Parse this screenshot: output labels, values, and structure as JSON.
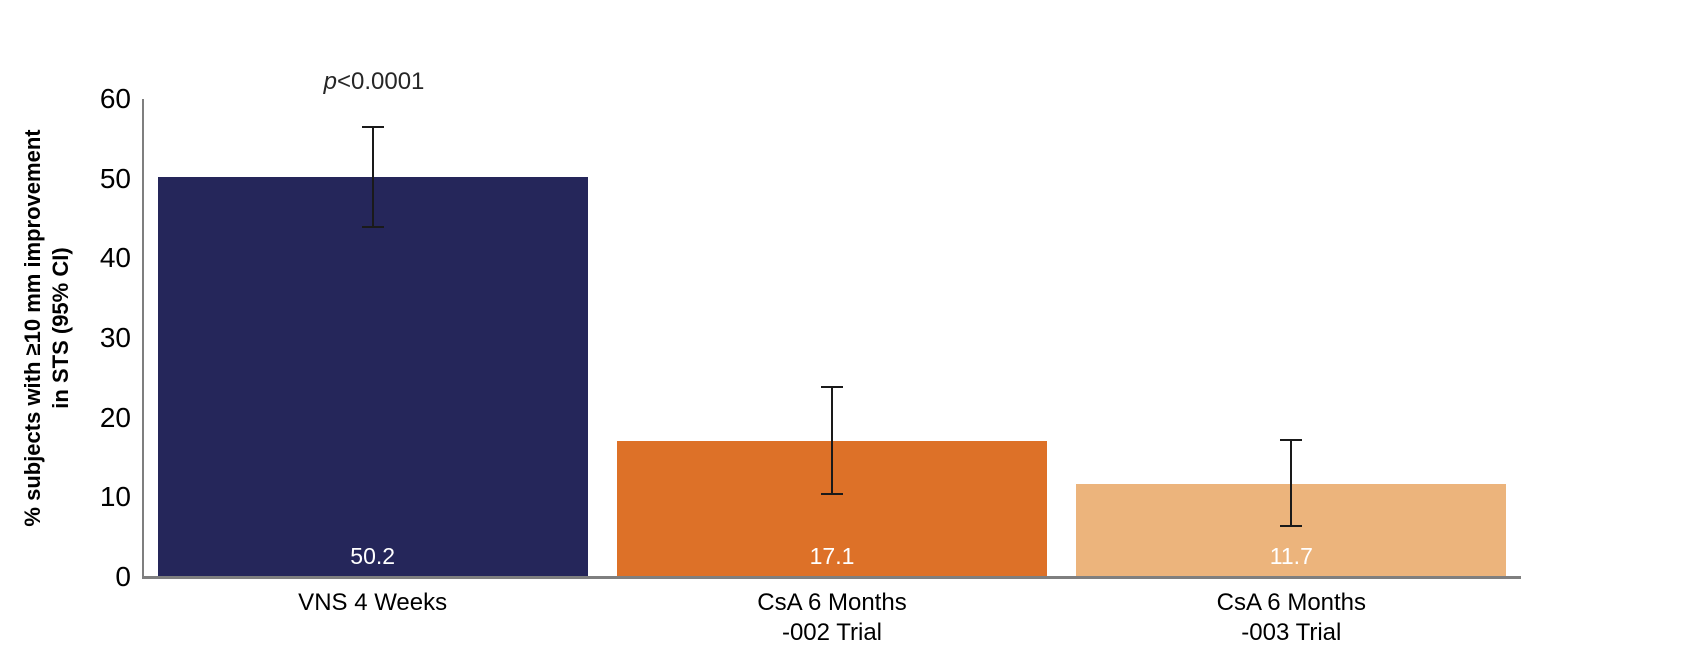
{
  "chart_data": {
    "type": "bar",
    "title": "",
    "xlabel": "",
    "ylabel": "% subjects with ≥10 mm improvement in STS (95% CI)",
    "ylabel_lines": [
      "% subjects with ≥10 mm improvement",
      "in STS (95% CI)"
    ],
    "ylim": [
      0,
      60
    ],
    "yticks": [
      0,
      10,
      20,
      30,
      40,
      50,
      60
    ],
    "grid": false,
    "legend": "none",
    "annotation": {
      "prefix": "p",
      "rest": "<0.0001",
      "bar_index": 0
    },
    "bars": [
      {
        "category_lines": [
          "VNS 4 Weeks"
        ],
        "value": 50.2,
        "label": "50.2",
        "ci_low": 43.9,
        "ci_high": 56.5,
        "color": "#25265A"
      },
      {
        "category_lines": [
          "CsA 6 Months",
          "-002 Trial"
        ],
        "value": 17.1,
        "label": "17.1",
        "ci_low": 10.4,
        "ci_high": 23.8,
        "color": "#DD7128"
      },
      {
        "category_lines": [
          "CsA 6 Months",
          "-003 Trial"
        ],
        "value": 11.7,
        "label": "11.7",
        "ci_low": 6.4,
        "ci_high": 17.2,
        "color": "#ECB47C"
      }
    ],
    "colors": {
      "axis": "#7F7F7F",
      "error_bar": "#1A1A1A",
      "value_label": "#FFFFFF",
      "category_label": "#000000",
      "annotation_text": "#262626"
    }
  }
}
